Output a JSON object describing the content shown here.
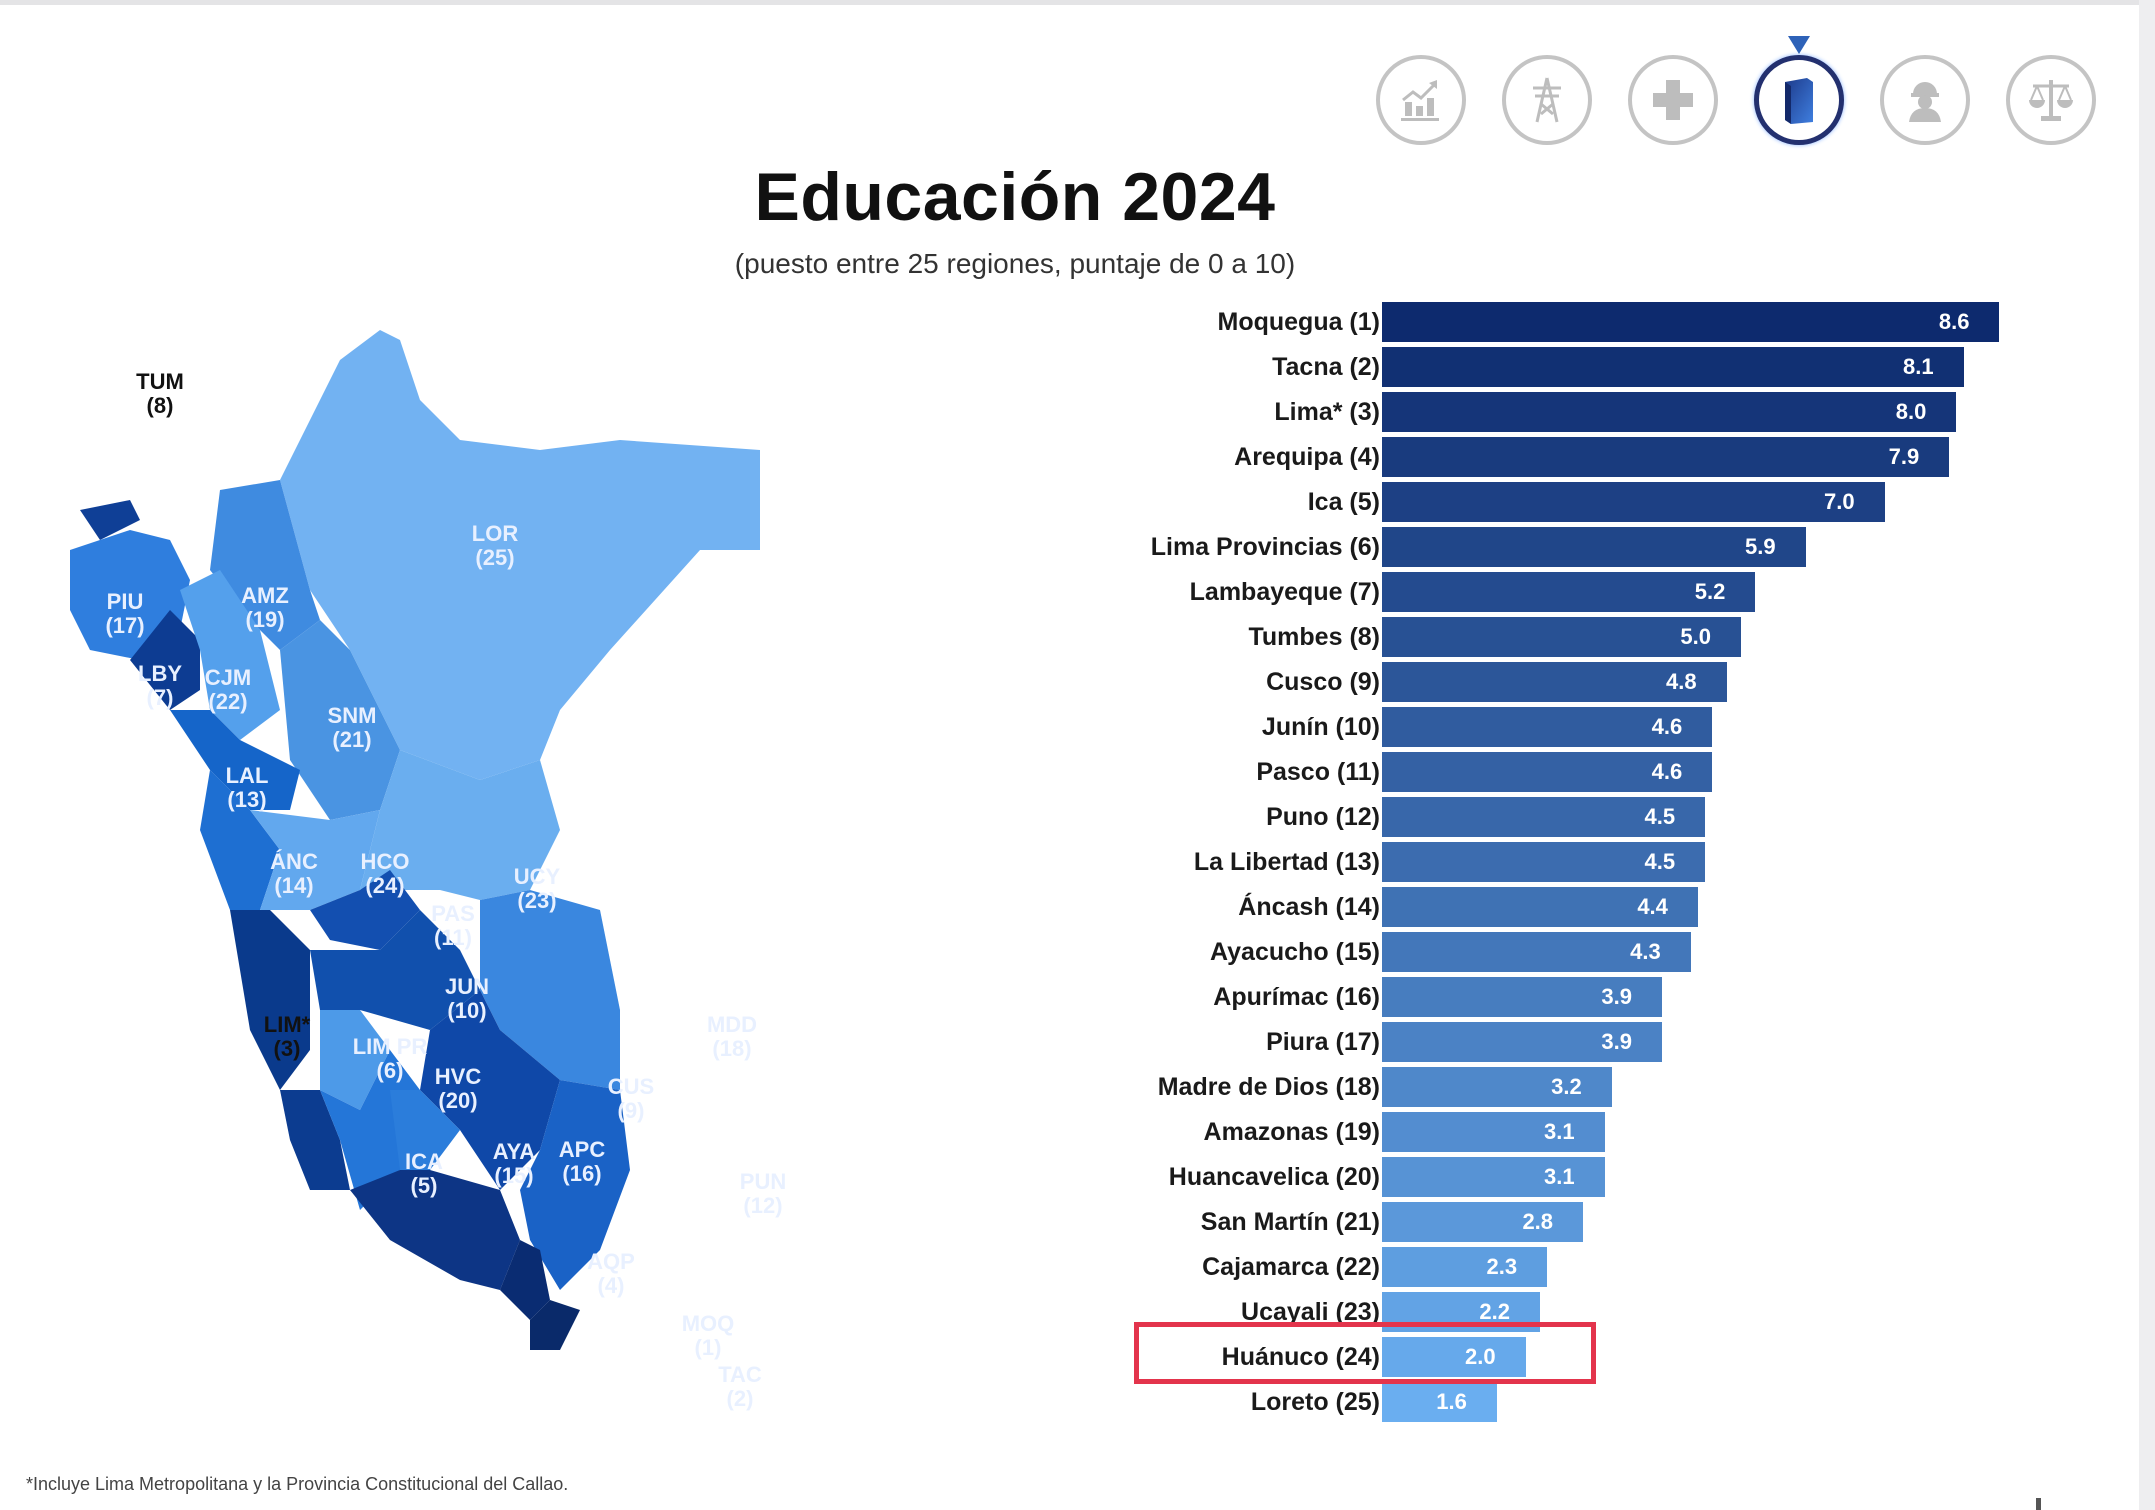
{
  "header": {
    "title": "Educación 2024",
    "subtitle": "(puesto entre 25 regiones, puntaje de 0 a 10)"
  },
  "category_icons": [
    {
      "name": "economy-chart-icon",
      "active": false
    },
    {
      "name": "infrastructure-tower-icon",
      "active": false
    },
    {
      "name": "health-cross-icon",
      "active": false
    },
    {
      "name": "education-book-icon",
      "active": true
    },
    {
      "name": "labor-worker-icon",
      "active": false
    },
    {
      "name": "institutions-scale-icon",
      "active": false
    }
  ],
  "colors": {
    "highlight": "#e3344c",
    "bar_darkest": "#0d2a6e",
    "bar_lightest": "#6aaef0",
    "icon_inactive": "#c4c4c4",
    "icon_active_ring": "#23306f"
  },
  "chart_data": {
    "type": "bar",
    "orientation": "horizontal",
    "title": "Educación 2024",
    "subtitle": "(puesto entre 25 regiones, puntaje de 0 a 10)",
    "xlabel": "",
    "ylabel": "",
    "xlim": [
      0,
      10
    ],
    "grid": false,
    "legend": null,
    "categories": [
      "Moquegua (1)",
      "Tacna (2)",
      "Lima* (3)",
      "Arequipa (4)",
      "Ica (5)",
      "Lima Provincias (6)",
      "Lambayeque (7)",
      "Tumbes (8)",
      "Cusco (9)",
      "Junín (10)",
      "Pasco (11)",
      "Puno (12)",
      "La Libertad (13)",
      "Áncash (14)",
      "Ayacucho (15)",
      "Apurímac (16)",
      "Piura (17)",
      "Madre de Dios (18)",
      "Amazonas (19)",
      "Huancavelica (20)",
      "San Martín (21)",
      "Cajamarca (22)",
      "Ucayali (23)",
      "Huánuco (24)",
      "Loreto (25)"
    ],
    "values": [
      8.6,
      8.1,
      8.0,
      7.9,
      7.0,
      5.9,
      5.2,
      5.0,
      4.8,
      4.6,
      4.6,
      4.5,
      4.5,
      4.4,
      4.3,
      3.9,
      3.9,
      3.2,
      3.1,
      3.1,
      2.8,
      2.3,
      2.2,
      2.0,
      1.6
    ],
    "value_labels": [
      "8.6",
      "8.1",
      "8.0",
      "7.9",
      "7.0",
      "5.9",
      "5.2",
      "5.0",
      "4.8",
      "4.6",
      "4.6",
      "4.5",
      "4.5",
      "4.4",
      "4.3",
      "3.9",
      "3.9",
      "3.2",
      "3.1",
      "3.1",
      "2.8",
      "2.3",
      "2.2",
      "2.0",
      "1.6"
    ],
    "highlighted_category": "Huánuco (24)",
    "annotations": [
      "Red box highlighting Huánuco (24) — 2.0"
    ]
  },
  "map": {
    "regions": [
      {
        "code": "TUM",
        "rank": "(8)"
      },
      {
        "code": "PIU",
        "rank": "(17)"
      },
      {
        "code": "LBY",
        "rank": "(7)"
      },
      {
        "code": "CJM",
        "rank": "(22)"
      },
      {
        "code": "AMZ",
        "rank": "(19)"
      },
      {
        "code": "LOR",
        "rank": "(25)"
      },
      {
        "code": "SNM",
        "rank": "(21)"
      },
      {
        "code": "LAL",
        "rank": "(13)"
      },
      {
        "code": "ÁNC",
        "rank": "(14)"
      },
      {
        "code": "HCO",
        "rank": "(24)"
      },
      {
        "code": "UCY",
        "rank": "(23)"
      },
      {
        "code": "PAS",
        "rank": "(11)"
      },
      {
        "code": "JUN",
        "rank": "(10)"
      },
      {
        "code": "LIM*",
        "rank": "(3)"
      },
      {
        "code": "LIM PR",
        "rank": "(6)"
      },
      {
        "code": "HVC",
        "rank": "(20)"
      },
      {
        "code": "MDD",
        "rank": "(18)"
      },
      {
        "code": "CUS",
        "rank": "(9)"
      },
      {
        "code": "ICA",
        "rank": "(5)"
      },
      {
        "code": "AYA",
        "rank": "(15)"
      },
      {
        "code": "APC",
        "rank": "(16)"
      },
      {
        "code": "PUN",
        "rank": "(12)"
      },
      {
        "code": "AQP",
        "rank": "(4)"
      },
      {
        "code": "MOQ",
        "rank": "(1)"
      },
      {
        "code": "TAC",
        "rank": "(2)"
      }
    ]
  },
  "footnote": "*Incluye Lima Metropolitana y la Provincia Constitucional del Callao."
}
